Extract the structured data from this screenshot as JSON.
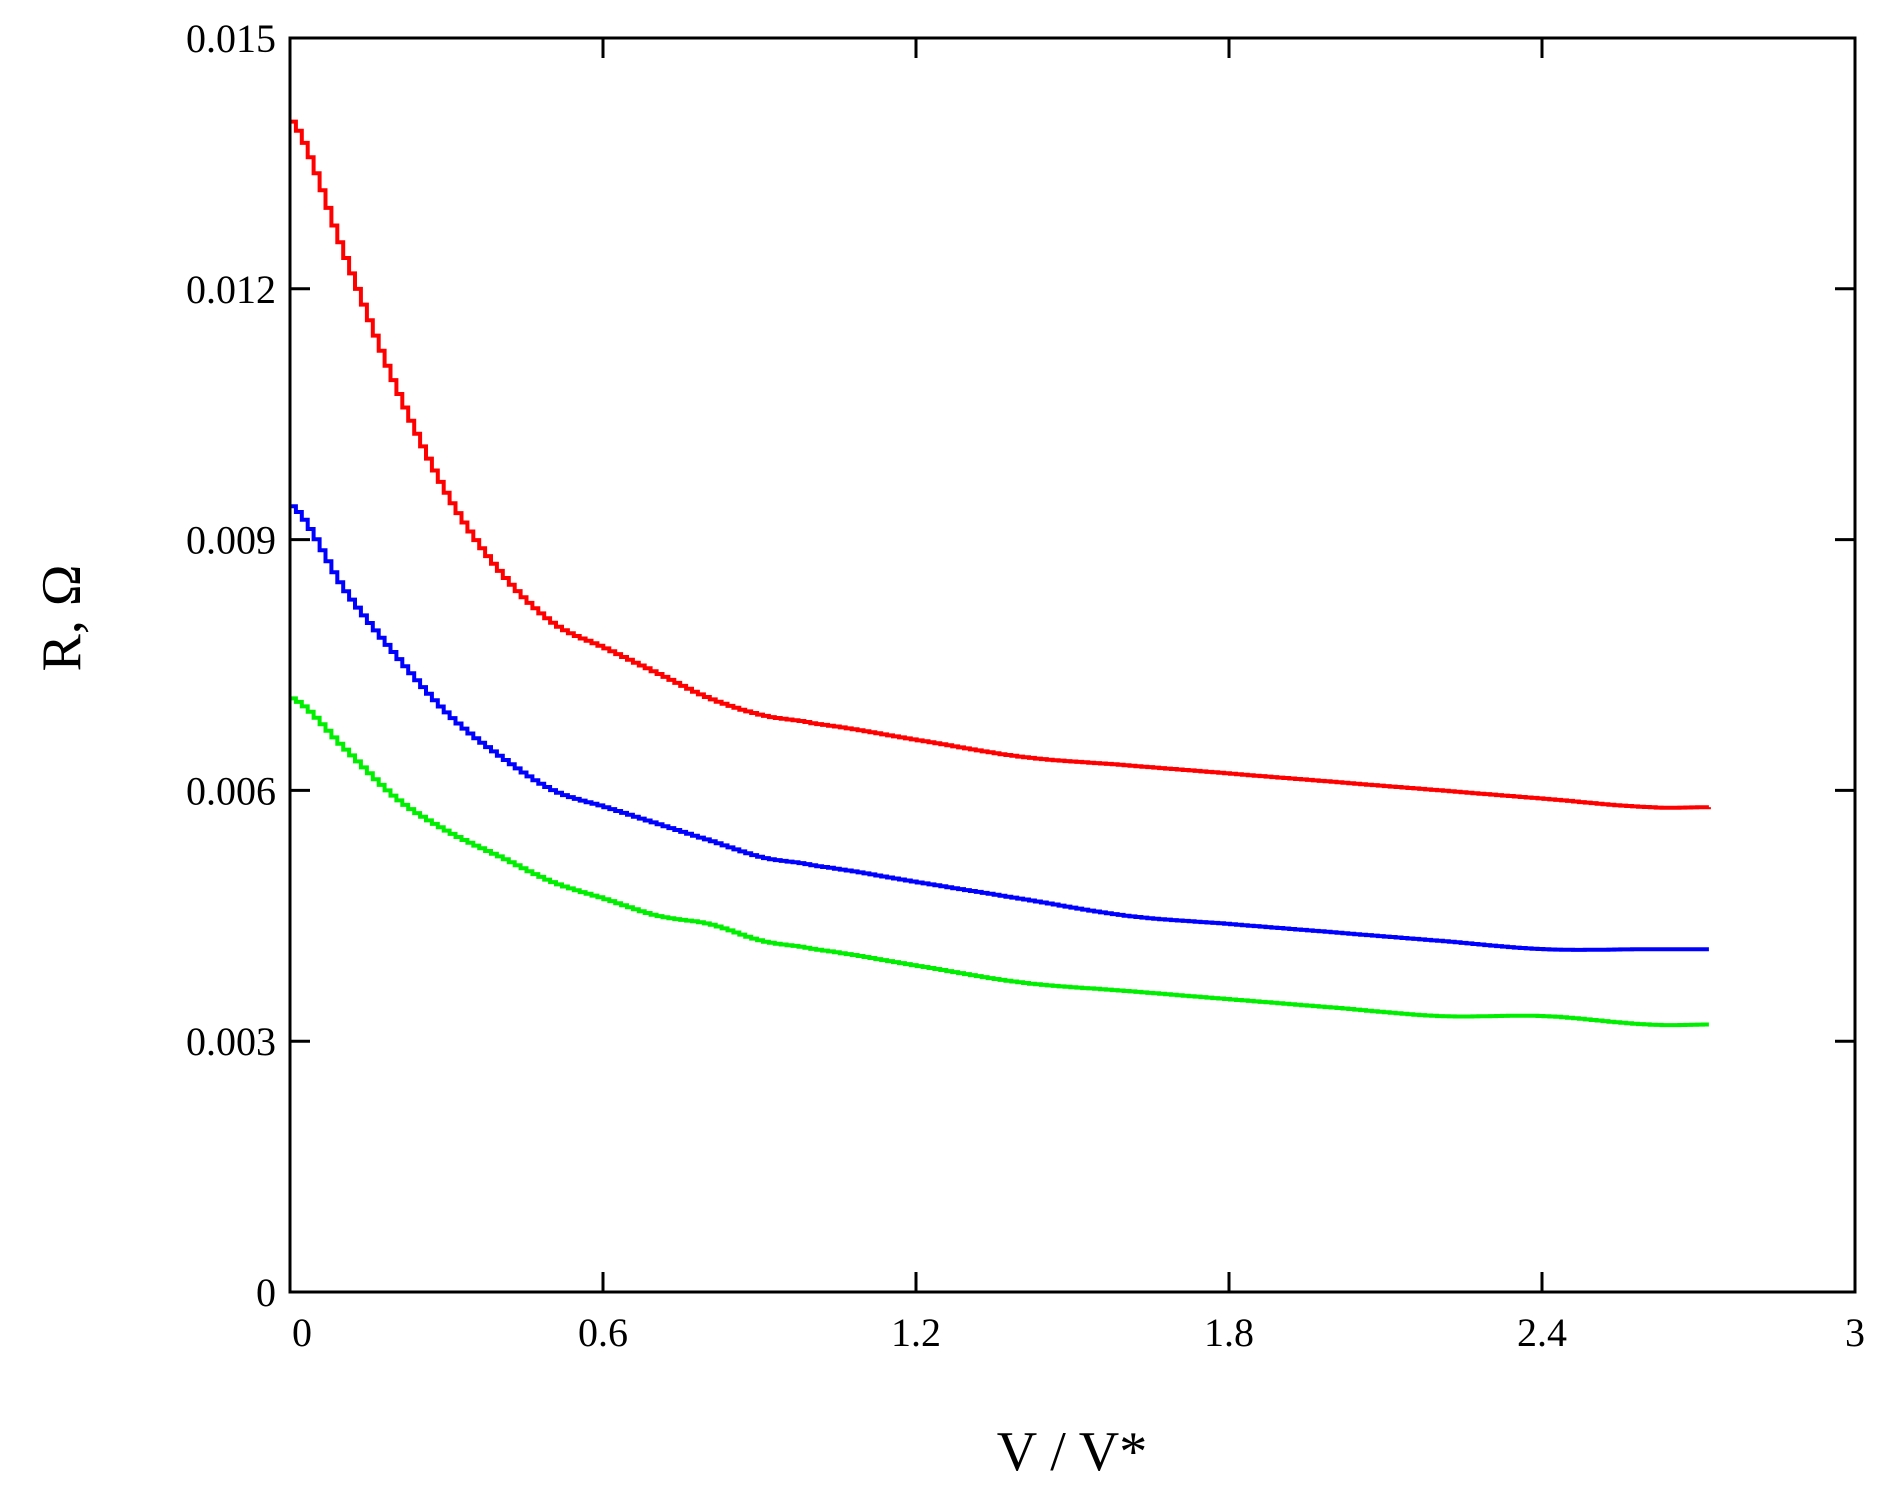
{
  "chart_data": {
    "type": "line",
    "xlabel": "V / V*",
    "ylabel": "R, Ω",
    "xlim": [
      0,
      3
    ],
    "ylim": [
      0,
      0.015
    ],
    "xticks": [
      {
        "value": 0,
        "label": "0"
      },
      {
        "value": 0.6,
        "label": "0.6"
      },
      {
        "value": 1.2,
        "label": "1.2"
      },
      {
        "value": 1.8,
        "label": "1.8"
      },
      {
        "value": 2.4,
        "label": "2.4"
      },
      {
        "value": 3,
        "label": "3"
      }
    ],
    "yticks": [
      {
        "value": 0,
        "label": "0"
      },
      {
        "value": 0.003,
        "label": "0.003"
      },
      {
        "value": 0.006,
        "label": "0.006"
      },
      {
        "value": 0.009,
        "label": "0.009"
      },
      {
        "value": 0.012,
        "label": "0.012"
      },
      {
        "value": 0.015,
        "label": "0.015"
      }
    ],
    "grid": false,
    "step_style": true,
    "series": [
      {
        "color": "#ff0000",
        "x": [
          0,
          0.1,
          0.2,
          0.3,
          0.4,
          0.5,
          0.6,
          0.7,
          0.8,
          0.9,
          1.0,
          1.2,
          1.4,
          1.6,
          1.8,
          2.0,
          2.2,
          2.4,
          2.6,
          2.72
        ],
        "y": [
          0.014,
          0.0124,
          0.0108,
          0.0095,
          0.0086,
          0.008,
          0.0077,
          0.0074,
          0.0071,
          0.0069,
          0.0068,
          0.0066,
          0.0064,
          0.0063,
          0.0062,
          0.0061,
          0.006,
          0.0059,
          0.0058,
          0.0058
        ]
      },
      {
        "color": "#0000ff",
        "x": [
          0,
          0.1,
          0.2,
          0.3,
          0.4,
          0.5,
          0.6,
          0.7,
          0.8,
          0.9,
          1.0,
          1.2,
          1.4,
          1.6,
          1.8,
          2.0,
          2.2,
          2.4,
          2.6,
          2.72
        ],
        "y": [
          0.0094,
          0.0084,
          0.0076,
          0.0069,
          0.0064,
          0.006,
          0.0058,
          0.0056,
          0.0054,
          0.0052,
          0.0051,
          0.0049,
          0.0047,
          0.0045,
          0.0044,
          0.0043,
          0.0042,
          0.0041,
          0.0041,
          0.0041
        ]
      },
      {
        "color": "#00ee00",
        "x": [
          0,
          0.1,
          0.2,
          0.3,
          0.4,
          0.5,
          0.6,
          0.7,
          0.8,
          0.9,
          1.0,
          1.2,
          1.4,
          1.6,
          1.8,
          2.0,
          2.2,
          2.4,
          2.6,
          2.72
        ],
        "y": [
          0.0071,
          0.0065,
          0.0059,
          0.0055,
          0.0052,
          0.0049,
          0.0047,
          0.0045,
          0.0044,
          0.0042,
          0.0041,
          0.0039,
          0.0037,
          0.0036,
          0.0035,
          0.0034,
          0.0033,
          0.0033,
          0.0032,
          0.0032
        ]
      }
    ]
  }
}
